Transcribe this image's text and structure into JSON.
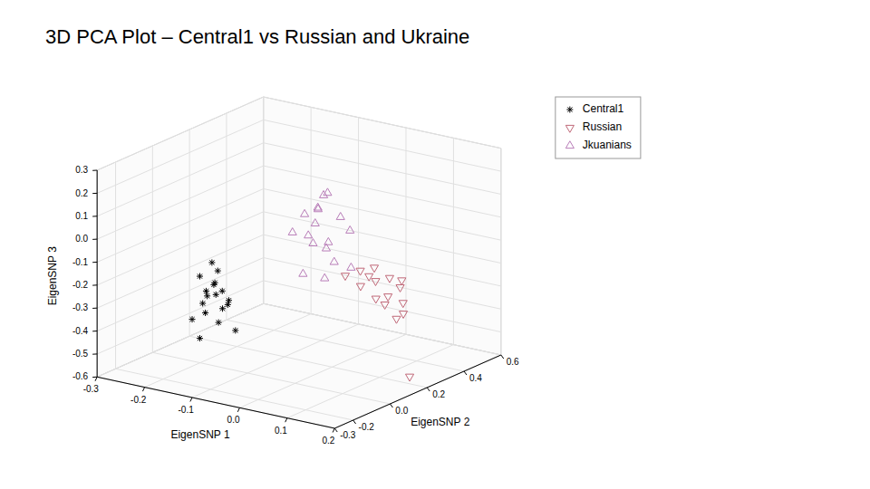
{
  "chart_data": {
    "type": "scatter3d",
    "title": "3D PCA Plot – Central1 vs Russian and Ukraine",
    "xlabel": "EigenSNP 1",
    "ylabel": "EigenSNP 2",
    "zlabel": "EigenSNP 3",
    "xlim": [
      -0.3,
      0.2
    ],
    "ylim": [
      -0.3,
      0.6
    ],
    "zlim": [
      -0.6,
      0.3
    ],
    "xticks": [
      -0.3,
      -0.2,
      -0.1,
      {
        "value": 0.0,
        "label": "0.0"
      },
      0.1,
      0.2
    ],
    "yticks": [
      -0.3,
      -0.2,
      {
        "value": 0.0,
        "label": "0.0"
      },
      0.2,
      0.4,
      0.6
    ],
    "zticks": [
      -0.6,
      -0.5,
      -0.4,
      -0.3,
      -0.2,
      -0.1,
      {
        "value": 0.0,
        "label": "0.0"
      },
      0.1,
      0.2,
      0.3
    ],
    "grid": true,
    "legend": "upper right",
    "series": [
      {
        "name": "Central1",
        "color": "black",
        "marker": "asterisk",
        "x": [
          -0.22,
          -0.2,
          -0.21,
          -0.19,
          -0.22,
          -0.2,
          -0.18,
          -0.21,
          -0.23,
          -0.19,
          -0.2,
          -0.22,
          -0.24,
          -0.2,
          -0.18,
          -0.22,
          -0.19,
          -0.21
        ],
        "y": [
          0.05,
          0.08,
          0.1,
          0.06,
          0.09,
          0.12,
          0.07,
          0.04,
          0.11,
          0.13,
          0.15,
          0.08,
          0.06,
          0.1,
          0.14,
          0.05,
          0.07,
          0.09
        ],
        "z": [
          -0.25,
          -0.28,
          -0.3,
          -0.32,
          -0.35,
          -0.33,
          -0.38,
          -0.36,
          -0.34,
          -0.37,
          -0.4,
          -0.42,
          -0.45,
          -0.46,
          -0.5,
          -0.52,
          -0.22,
          -0.2
        ]
      },
      {
        "name": "Russian",
        "color": "#c06878",
        "marker": "triangle_down",
        "x": [
          0.02,
          0.04,
          0.06,
          0.08,
          0.1,
          0.12,
          0.05,
          0.09,
          0.11,
          0.13,
          0.15,
          0.1,
          0.08,
          0.12,
          0.14,
          0.07
        ],
        "y": [
          0.22,
          0.25,
          0.2,
          0.23,
          0.18,
          0.26,
          0.3,
          0.28,
          0.22,
          0.25,
          0.2,
          0.32,
          0.28,
          0.24,
          0.26,
          0.22
        ],
        "z": [
          -0.2,
          -0.18,
          -0.22,
          -0.2,
          -0.25,
          -0.22,
          -0.18,
          -0.2,
          -0.25,
          -0.28,
          -0.3,
          -0.22,
          -0.32,
          -0.35,
          -0.6,
          -0.18
        ]
      },
      {
        "name": "Jkuanians",
        "color": "#b87db8",
        "marker": "triangle_up",
        "x": [
          -0.05,
          -0.03,
          -0.01,
          0.01,
          -0.02,
          0.0,
          -0.04,
          -0.02,
          0.02,
          0.04,
          -0.06,
          -0.01,
          0.01,
          -0.03,
          0.0,
          -0.05,
          0.03
        ],
        "y": [
          0.18,
          0.2,
          0.15,
          0.22,
          0.16,
          0.18,
          0.2,
          0.22,
          0.16,
          0.2,
          0.14,
          0.18,
          0.15,
          0.12,
          0.16,
          0.2,
          0.22
        ],
        "z": [
          0.05,
          0.08,
          0.1,
          0.05,
          0.03,
          -0.05,
          -0.08,
          -0.1,
          -0.12,
          -0.15,
          -0.02,
          0.15,
          0.18,
          -0.18,
          -0.2,
          -0.05,
          0.0
        ]
      }
    ]
  }
}
